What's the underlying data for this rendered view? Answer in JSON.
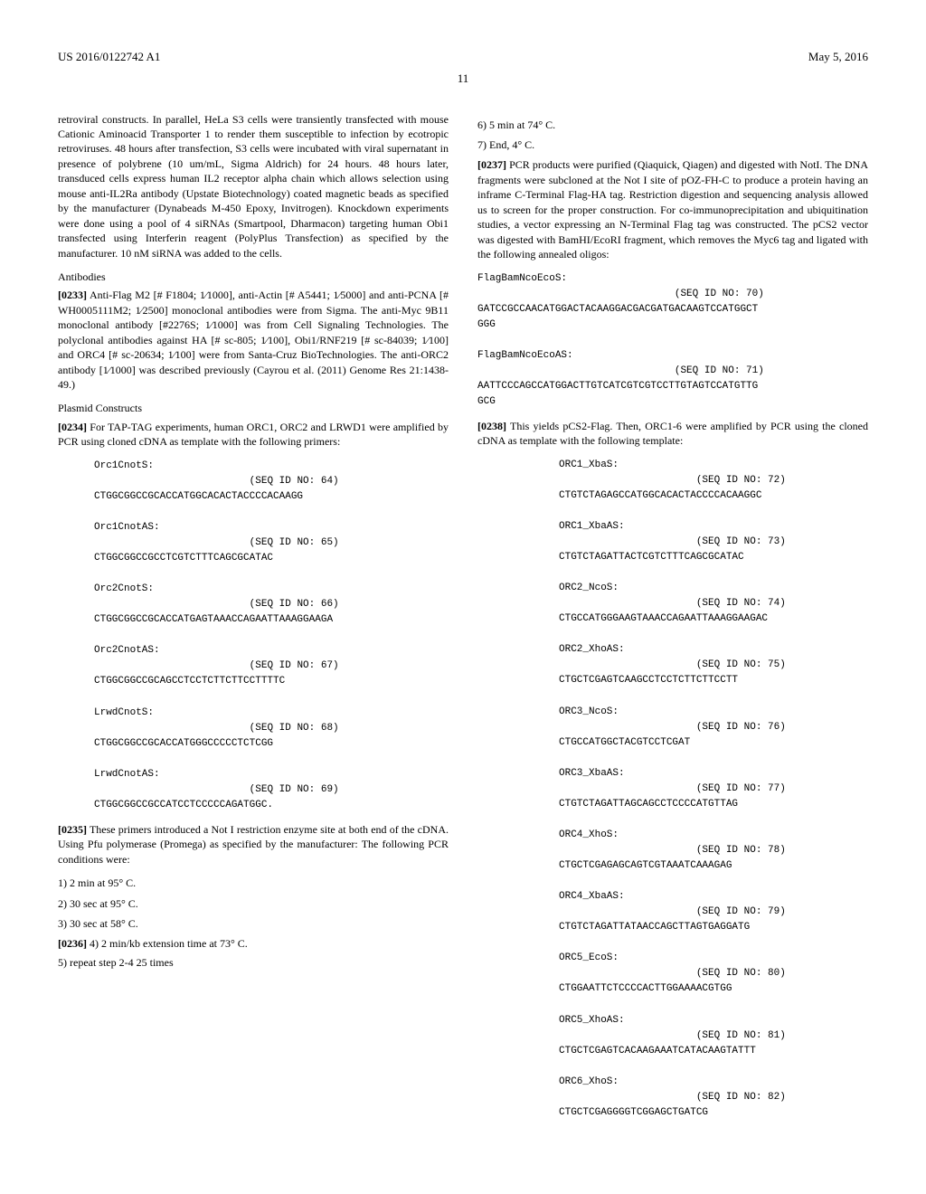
{
  "header": {
    "pub_number": "US 2016/0122742 A1",
    "pub_date": "May 5, 2016",
    "page": "11"
  },
  "left": {
    "top_para": "retroviral constructs. In parallel, HeLa S3 cells were transiently transfected with mouse Cationic Aminoacid Transporter 1 to render them susceptible to infection by ecotropic retroviruses. 48 hours after transfection, S3 cells were incubated with viral supernatant in presence of polybrene (10 um/mL, Sigma Aldrich) for 24 hours. 48 hours later, transduced cells express human IL2 receptor alpha chain which allows selection using mouse anti-IL2Ra antibody (Upstate Biotechnology) coated magnetic beads as specified by the manufacturer (Dynabeads M-450 Epoxy, Invitrogen). Knockdown experiments were done using a pool of 4 siRNAs (Smartpool, Dharmacon) targeting human Obi1 transfected using Interferin reagent (PolyPlus Transfection) as specified by the manufacturer. 10 nM siRNA was added to the cells.",
    "antibodies_head": "Antibodies",
    "p233_num": "[0233]",
    "p233_text": " Anti-Flag M2 [# F1804; 1⁄1000], anti-Actin [# A5441; 1⁄5000] and anti-PCNA [# WH0005111M2; 1⁄2500] monoclonal antibodies were from Sigma. The anti-Myc 9B11 monoclonal antibody [#2276S; 1⁄1000] was from Cell Signaling Technologies. The polyclonal antibodies against HA [# sc-805; 1⁄100], Obi1/RNF219 [# sc-84039; 1⁄100] and ORC4 [# sc-20634; 1⁄100] were from Santa-Cruz BioTechnologies. The anti-ORC2 antibody [1⁄1000] was described previously (Cayrou et al. (2011) Genome Res 21:1438-49.)",
    "plasmid_head": "Plasmid Constructs",
    "p234_num": "[0234]",
    "p234_text": " For TAP-TAG experiments, human ORC1, ORC2 and LRWD1 were amplified by PCR using cloned cDNA as template with the following primers:",
    "seq64_name": "Orc1CnotS:",
    "seq64_id": "(SEQ ID NO: 64)",
    "seq64_seq": "CTGGCGGCCGCACCATGGCACACTACCCCACAAGG",
    "seq65_name": "Orc1CnotAS:",
    "seq65_id": "(SEQ ID NO: 65)",
    "seq65_seq": "CTGGCGGCCGCCTCGTCTTTCAGCGCATAC",
    "seq66_name": "Orc2CnotS:",
    "seq66_id": "(SEQ ID NO: 66)",
    "seq66_seq": "CTGGCGGCCGCACCATGAGTAAACCAGAATTAAAGGAAGA",
    "seq67_name": "Orc2CnotAS:",
    "seq67_id": "(SEQ ID NO: 67)",
    "seq67_seq": "CTGGCGGCCGCAGCCTCCTCTTCTTCCTTTTC",
    "seq68_name": "LrwdCnotS:",
    "seq68_id": "(SEQ ID NO: 68)",
    "seq68_seq": "CTGGCGGCCGCACCATGGGCCCCCTCTCGG",
    "seq69_name": "LrwdCnotAS:",
    "seq69_id": "(SEQ ID NO: 69)",
    "seq69_seq": "CTGGCGGCCGCCATCCTCCCCCAGATGGC.",
    "p235_num": "[0235]",
    "p235_text": " These primers introduced a Not I restriction enzyme site at both end of the cDNA. Using Pfu polymerase (Promega) as specified by the manufacturer: The following PCR conditions were:",
    "step1": "1) 2 min at 95° C.",
    "step2": "2) 30 sec at 95° C.",
    "step3": "3) 30 sec at 58° C.",
    "p236_num": "[0236]",
    "p236_text": " 4) 2 min/kb extension time at 73° C.",
    "step5": "5) repeat step 2-4 25 times"
  },
  "right": {
    "step6": "6) 5 min at 74° C.",
    "step7": "7) End, 4° C.",
    "p237_num": "[0237]",
    "p237_text": " PCR products were purified (Qiaquick, Qiagen) and digested with NotI. The DNA fragments were subcloned at the Not I site of pOZ-FH-C to produce a protein having an inframe C-Terminal Flag-HA tag. Restriction digestion and sequencing analysis allowed us to screen for the proper construction. For co-immunoprecipitation and ubiquitination studies, a vector expressing an N-Terminal Flag tag was constructed. The pCS2 vector was digested with BamHI/EcoRI fragment, which removes the Myc6 tag and ligated with the following annealed oligos:",
    "seq70_name": "FlagBamNcoEcoS:",
    "seq70_id": "(SEQ ID NO: 70)",
    "seq70_seq1": "GATCCGCCAACATGGACTACAAGGACGACGATGACAAGTCCATGGCT",
    "seq70_seq2": "GGG",
    "seq71_name": "FlagBamNcoEcoAS:",
    "seq71_id": "(SEQ ID NO: 71)",
    "seq71_seq1": "AATTCCCAGCCATGGACTTGTCATCGTCGTCCTTGTAGTCCATGTTG",
    "seq71_seq2": "GCG",
    "p238_num": "[0238]",
    "p238_text": " This yields pCS2-Flag. Then, ORC1-6 were amplified by PCR using the cloned cDNA as template with the following template:",
    "seq72_name": "ORC1_XbaS:",
    "seq72_id": "(SEQ ID NO: 72)",
    "seq72_seq": "CTGTCTAGAGCCATGGCACACTACCCCACAAGGC",
    "seq73_name": "ORC1_XbaAS:",
    "seq73_id": "(SEQ ID NO: 73)",
    "seq73_seq": "CTGTCTAGATTACTCGTCTTTCAGCGCATAC",
    "seq74_name": "ORC2_NcoS:",
    "seq74_id": "(SEQ ID NO: 74)",
    "seq74_seq": "CTGCCATGGGAAGTAAACCAGAATTAAAGGAAGAC",
    "seq75_name": "ORC2_XhoAS:",
    "seq75_id": "(SEQ ID NO: 75)",
    "seq75_seq": "CTGCTCGAGTCAAGCCTCCTCTTCTTCCTT",
    "seq76_name": "ORC3_NcoS:",
    "seq76_id": "(SEQ ID NO: 76)",
    "seq76_seq": "CTGCCATGGCTACGTCCTCGAT",
    "seq77_name": "ORC3_XbaAS:",
    "seq77_id": "(SEQ ID NO: 77)",
    "seq77_seq": "CTGTCTAGATTAGCAGCCTCCCCATGTTAG",
    "seq78_name": "ORC4_XhoS:",
    "seq78_id": "(SEQ ID NO: 78)",
    "seq78_seq": "CTGCTCGAGAGCAGTCGTAAATCAAAGAG",
    "seq79_name": "ORC4_XbaAS:",
    "seq79_id": "(SEQ ID NO: 79)",
    "seq79_seq": "CTGTCTAGATTATAACCAGCTTAGTGAGGATG",
    "seq80_name": "ORC5_EcoS:",
    "seq80_id": "(SEQ ID NO: 80)",
    "seq80_seq": "CTGGAATTCTCCCCACTTGGAAAACGTGG",
    "seq81_name": "ORC5_XhoAS:",
    "seq81_id": "(SEQ ID NO: 81)",
    "seq81_seq": "CTGCTCGAGTCACAAGAAATCATACAAGTATTT",
    "seq82_name": "ORC6_XhoS:",
    "seq82_id": "(SEQ ID NO: 82)",
    "seq82_seq": "CTGCTCGAGGGGTCGGAGCTGATCG"
  }
}
